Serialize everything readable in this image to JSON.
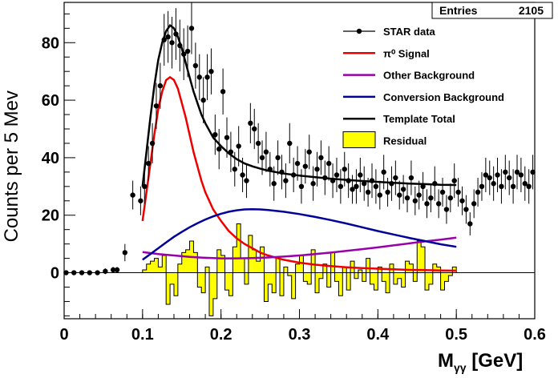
{
  "chart_data": {
    "type": "histogram",
    "xlabel_main": "M",
    "xlabel_sub": "γγ",
    "xlabel_unit": " [GeV]",
    "ylabel": "Counts per 5 Mev",
    "xlim": [
      0,
      0.6
    ],
    "ylim": [
      -16,
      94
    ],
    "x_ticks": [
      0,
      0.1,
      0.2,
      0.3,
      0.4,
      0.5,
      0.6
    ],
    "x_tick_labels": [
      "0",
      "0.1",
      "0.2",
      "0.3",
      "0.4",
      "0.5",
      "0.6"
    ],
    "y_ticks": [
      0,
      20,
      40,
      60,
      80
    ],
    "y_tick_labels": [
      "0",
      "20",
      "40",
      "60",
      "80"
    ],
    "stats": {
      "label": "Entries",
      "value": "2105"
    },
    "legend": [
      {
        "label": "STAR data",
        "color": "#000000",
        "style": "marker"
      },
      {
        "label": "π⁰ Signal",
        "color": "#ee0000",
        "style": "line"
      },
      {
        "label": "Other Background",
        "color": "#9900aa",
        "style": "line"
      },
      {
        "label": "Conversion Background",
        "color": "#000099",
        "style": "line"
      },
      {
        "label": "Template Total",
        "color": "#000000",
        "style": "line"
      },
      {
        "label": "Residual",
        "color": "#ffff00",
        "style": "fill"
      }
    ],
    "series": [
      {
        "name": "STAR data",
        "type": "points_with_errors",
        "color": "#000000",
        "x": [
          0.0025,
          0.0125,
          0.0225,
          0.0325,
          0.0425,
          0.0525,
          0.0625,
          0.0675,
          0.0775,
          0.0875,
          0.0975,
          0.1025,
          0.1075,
          0.1125,
          0.1175,
          0.1225,
          0.1275,
          0.1325,
          0.1375,
          0.1425,
          0.1475,
          0.1525,
          0.1575,
          0.1625,
          0.1675,
          0.1725,
          0.1775,
          0.1825,
          0.1875,
          0.1925,
          0.1975,
          0.2025,
          0.2075,
          0.2125,
          0.2175,
          0.2225,
          0.2275,
          0.2325,
          0.2375,
          0.2425,
          0.2475,
          0.2525,
          0.2575,
          0.2625,
          0.2675,
          0.2725,
          0.2775,
          0.2825,
          0.2875,
          0.2925,
          0.2975,
          0.3025,
          0.3075,
          0.3125,
          0.3175,
          0.3225,
          0.3275,
          0.3325,
          0.3375,
          0.3425,
          0.3475,
          0.3525,
          0.3575,
          0.3625,
          0.3675,
          0.3725,
          0.3775,
          0.3825,
          0.3875,
          0.3925,
          0.3975,
          0.4025,
          0.4075,
          0.4125,
          0.4175,
          0.4225,
          0.4275,
          0.4325,
          0.4375,
          0.4425,
          0.4475,
          0.4525,
          0.4575,
          0.4625,
          0.4675,
          0.4725,
          0.4775,
          0.4825,
          0.4875,
          0.4925,
          0.4975,
          0.5025,
          0.5075,
          0.5125,
          0.5175,
          0.5225,
          0.5275,
          0.5325,
          0.5375,
          0.5425,
          0.5475,
          0.5525,
          0.5575,
          0.5625,
          0.5675,
          0.5725,
          0.5775,
          0.5825,
          0.5875,
          0.5925,
          0.5975
        ],
        "y": [
          0,
          0,
          0,
          0,
          0,
          0.5,
          1,
          1,
          7,
          27,
          25,
          30,
          38,
          45,
          58,
          65,
          81,
          82,
          80,
          83,
          79,
          76,
          77,
          85,
          72,
          68,
          60,
          68,
          70,
          48,
          43,
          63,
          47,
          42,
          36,
          44,
          34,
          32,
          52,
          50,
          45,
          40,
          42,
          36,
          31,
          40,
          35,
          32,
          45,
          34,
          38,
          30,
          37,
          42,
          31,
          36,
          40,
          33,
          38,
          32,
          34,
          30,
          36,
          32,
          29,
          30,
          34,
          31,
          28,
          32,
          30,
          27,
          35,
          28,
          31,
          33,
          27,
          29,
          26,
          33,
          25,
          27,
          30,
          24,
          26,
          31,
          24,
          28,
          22,
          26,
          32,
          28,
          25,
          22,
          17,
          24,
          28,
          30,
          34,
          33,
          31,
          34,
          30,
          35,
          33,
          30,
          35,
          34,
          31,
          30,
          35
        ],
        "err": [
          0,
          0,
          0,
          0,
          0,
          1,
          1,
          1,
          3,
          5,
          5,
          6,
          6,
          7,
          8,
          8,
          9,
          9,
          9,
          9,
          9,
          9,
          9,
          9,
          8,
          8,
          8,
          8,
          8,
          7,
          7,
          8,
          7,
          7,
          6,
          7,
          6,
          6,
          7,
          7,
          7,
          6,
          7,
          6,
          6,
          6,
          6,
          6,
          7,
          6,
          6,
          6,
          6,
          6,
          6,
          6,
          6,
          6,
          6,
          6,
          6,
          6,
          6,
          6,
          5,
          6,
          6,
          6,
          5,
          6,
          6,
          5,
          6,
          5,
          6,
          6,
          5,
          5,
          5,
          6,
          5,
          5,
          5,
          5,
          5,
          6,
          5,
          5,
          5,
          5,
          6,
          5,
          5,
          5,
          4,
          5,
          5,
          5,
          6,
          6,
          6,
          6,
          6,
          6,
          6,
          6,
          6,
          6,
          6,
          6,
          6
        ]
      },
      {
        "name": "π⁰ Signal",
        "type": "line",
        "color": "#ee0000",
        "x": [
          0.1,
          0.105,
          0.11,
          0.115,
          0.12,
          0.125,
          0.13,
          0.135,
          0.14,
          0.145,
          0.15,
          0.155,
          0.16,
          0.165,
          0.17,
          0.175,
          0.18,
          0.19,
          0.2,
          0.21,
          0.22,
          0.23,
          0.24,
          0.25,
          0.26,
          0.28,
          0.3,
          0.32,
          0.34,
          0.36,
          0.38,
          0.4,
          0.42,
          0.44,
          0.46,
          0.48,
          0.5
        ],
        "y": [
          18,
          28,
          38,
          48,
          57,
          63,
          67,
          68,
          67,
          64,
          59,
          54,
          48,
          42,
          37,
          32,
          28,
          22,
          18,
          14.5,
          12,
          10,
          8.5,
          7,
          6,
          4.5,
          3.5,
          2.8,
          2.3,
          1.9,
          1.6,
          1.4,
          1.2,
          1.0,
          0.9,
          0.8,
          0.7
        ]
      },
      {
        "name": "Other Background",
        "type": "line",
        "color": "#9900aa",
        "x": [
          0.1,
          0.12,
          0.14,
          0.16,
          0.18,
          0.2,
          0.22,
          0.24,
          0.26,
          0.28,
          0.3,
          0.32,
          0.34,
          0.36,
          0.38,
          0.4,
          0.42,
          0.44,
          0.46,
          0.48,
          0.5
        ],
        "y": [
          7.2,
          6.5,
          6.0,
          5.5,
          5.2,
          5.0,
          5.0,
          5.1,
          5.3,
          5.6,
          6.0,
          6.5,
          7.0,
          7.6,
          8.2,
          8.8,
          9.5,
          10.2,
          10.9,
          11.5,
          12.2
        ]
      },
      {
        "name": "Conversion Background",
        "type": "line",
        "color": "#000099",
        "x": [
          0.1,
          0.11,
          0.12,
          0.13,
          0.14,
          0.15,
          0.16,
          0.17,
          0.18,
          0.19,
          0.2,
          0.21,
          0.22,
          0.23,
          0.24,
          0.25,
          0.26,
          0.28,
          0.3,
          0.32,
          0.34,
          0.36,
          0.38,
          0.4,
          0.42,
          0.44,
          0.46,
          0.48,
          0.5
        ],
        "y": [
          4.5,
          6.5,
          8.5,
          10.5,
          12.5,
          14.2,
          15.8,
          17.2,
          18.5,
          19.6,
          20.5,
          21.2,
          21.7,
          22.0,
          22.1,
          22.0,
          21.8,
          21.2,
          20.4,
          19.4,
          18.3,
          17.1,
          15.8,
          14.5,
          13.3,
          12.1,
          11.0,
          9.9,
          9.0
        ]
      },
      {
        "name": "Template Total",
        "type": "line",
        "color": "#000000",
        "x": [
          0.1,
          0.105,
          0.11,
          0.115,
          0.12,
          0.125,
          0.13,
          0.135,
          0.14,
          0.145,
          0.15,
          0.155,
          0.16,
          0.165,
          0.17,
          0.175,
          0.18,
          0.19,
          0.2,
          0.21,
          0.22,
          0.23,
          0.24,
          0.25,
          0.26,
          0.28,
          0.3,
          0.32,
          0.34,
          0.36,
          0.38,
          0.4,
          0.42,
          0.44,
          0.46,
          0.48,
          0.5
        ],
        "y": [
          30,
          42,
          54,
          65,
          74,
          80,
          84,
          86,
          85,
          82,
          78,
          73,
          68,
          63,
          59,
          55,
          52,
          47,
          44,
          41.5,
          39.5,
          38,
          37,
          36.2,
          35.5,
          34.5,
          33.8,
          33.2,
          32.7,
          32.3,
          31.9,
          31.6,
          31.3,
          31.0,
          30.8,
          30.6,
          30.5
        ]
      },
      {
        "name": "Residual",
        "type": "histogram_fill",
        "color": "#ffff00",
        "bin_width": 0.005,
        "x": [
          0.1,
          0.105,
          0.11,
          0.115,
          0.12,
          0.125,
          0.13,
          0.135,
          0.14,
          0.145,
          0.15,
          0.155,
          0.16,
          0.165,
          0.17,
          0.175,
          0.18,
          0.185,
          0.19,
          0.195,
          0.2,
          0.205,
          0.21,
          0.215,
          0.22,
          0.225,
          0.23,
          0.235,
          0.24,
          0.245,
          0.25,
          0.255,
          0.26,
          0.265,
          0.27,
          0.275,
          0.28,
          0.285,
          0.29,
          0.295,
          0.3,
          0.305,
          0.31,
          0.315,
          0.32,
          0.325,
          0.33,
          0.335,
          0.34,
          0.345,
          0.35,
          0.355,
          0.36,
          0.365,
          0.37,
          0.375,
          0.38,
          0.385,
          0.39,
          0.395,
          0.4,
          0.405,
          0.41,
          0.415,
          0.42,
          0.425,
          0.43,
          0.435,
          0.44,
          0.445,
          0.45,
          0.455,
          0.46,
          0.465,
          0.47,
          0.475,
          0.48,
          0.485,
          0.49,
          0.495
        ],
        "y": [
          1,
          3,
          4,
          5,
          2,
          6,
          -11,
          -4,
          -8,
          3,
          7,
          8,
          11,
          7,
          -5,
          -7,
          2,
          -15,
          -9,
          8,
          6,
          -6,
          -8,
          9,
          17,
          5,
          -4,
          13,
          8,
          4,
          9,
          -10,
          -4,
          -7,
          5,
          -8,
          2,
          -1,
          -9,
          3,
          6,
          -3,
          -4,
          8,
          -7,
          -2,
          3,
          -5,
          7,
          -3,
          -8,
          2,
          -6,
          4,
          -2,
          1,
          -3,
          5,
          -4,
          -6,
          2,
          -3,
          -7,
          3,
          -4,
          -2,
          -5,
          4,
          3,
          -3,
          11,
          9,
          -6,
          -4,
          3,
          2,
          -6,
          -3,
          -1,
          2
        ]
      }
    ]
  }
}
